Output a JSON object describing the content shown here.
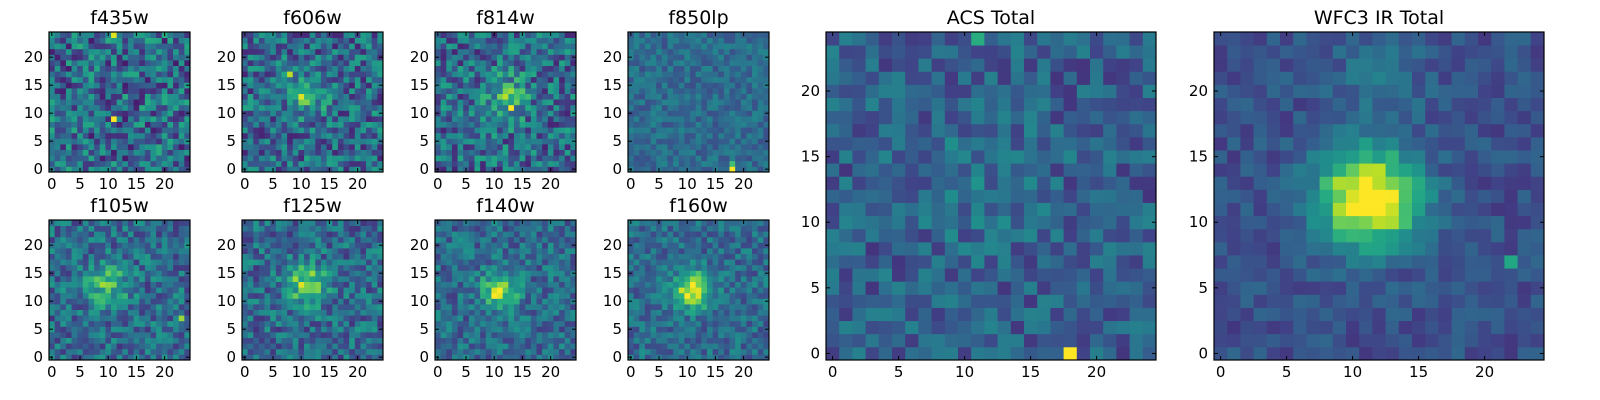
{
  "chart_data": {
    "type": "heatmap",
    "colormap": "viridis",
    "pixel_grid": [
      25,
      25
    ],
    "grid": false,
    "panels": [
      {
        "title": "f435w",
        "xticks": [
          "0",
          "5",
          "10",
          "15",
          "20"
        ],
        "yticks": [
          "0",
          "5",
          "10",
          "15",
          "20"
        ],
        "xlim": [
          -0.5,
          24.5
        ],
        "ylim": [
          -0.5,
          24.5
        ],
        "noise": 0.55,
        "blobs": [],
        "hot_pixels": [
          {
            "x": 11,
            "y": 9,
            "v": 1.0
          },
          {
            "x": 11,
            "y": 24,
            "v": 0.95
          }
        ]
      },
      {
        "title": "f606w",
        "xticks": [
          "0",
          "5",
          "10",
          "15",
          "20"
        ],
        "yticks": [
          "0",
          "5",
          "10",
          "15",
          "20"
        ],
        "xlim": [
          -0.5,
          24.5
        ],
        "ylim": [
          -0.5,
          24.5
        ],
        "noise": 0.5,
        "blobs": [
          {
            "x": 11,
            "y": 13,
            "sigma": 2.5,
            "amp": 0.25
          }
        ],
        "hot_pixels": [
          {
            "x": 10,
            "y": 13,
            "v": 0.95
          },
          {
            "x": 8,
            "y": 17,
            "v": 0.9
          }
        ]
      },
      {
        "title": "f814w",
        "xticks": [
          "0",
          "5",
          "10",
          "15",
          "20"
        ],
        "yticks": [
          "0",
          "5",
          "10",
          "15",
          "20"
        ],
        "xlim": [
          -0.5,
          24.5
        ],
        "ylim": [
          -0.5,
          24.5
        ],
        "noise": 0.5,
        "blobs": [
          {
            "x": 12,
            "y": 13,
            "sigma": 2.8,
            "amp": 0.3
          }
        ],
        "hot_pixels": [
          {
            "x": 13,
            "y": 11,
            "v": 1.0
          }
        ]
      },
      {
        "title": "f850lp",
        "xticks": [
          "0",
          "5",
          "10",
          "15",
          "20"
        ],
        "yticks": [
          "0",
          "5",
          "10",
          "15",
          "20"
        ],
        "xlim": [
          -0.5,
          24.5
        ],
        "ylim": [
          -0.5,
          24.5
        ],
        "noise": 0.22,
        "blobs": [],
        "hot_pixels": [
          {
            "x": 18,
            "y": 0,
            "v": 1.0
          },
          {
            "x": 18,
            "y": 1,
            "v": 0.7
          }
        ]
      },
      {
        "title": "ACS Total",
        "xticks": [
          "0",
          "5",
          "10",
          "15",
          "20"
        ],
        "yticks": [
          "0",
          "5",
          "10",
          "15",
          "20"
        ],
        "xlim": [
          -0.5,
          24.5
        ],
        "ylim": [
          -0.5,
          24.5
        ],
        "noise": 0.3,
        "base": 0.3,
        "blobs": [
          {
            "x": 11,
            "y": 13,
            "sigma": 3.5,
            "amp": 0.08
          }
        ],
        "hot_pixels": [
          {
            "x": 18,
            "y": 0,
            "v": 1.0
          },
          {
            "x": 11,
            "y": 24,
            "v": 0.62
          }
        ]
      },
      {
        "title": "f105w",
        "xticks": [
          "0",
          "5",
          "10",
          "15",
          "20"
        ],
        "yticks": [
          "0",
          "5",
          "10",
          "15",
          "20"
        ],
        "xlim": [
          -0.5,
          24.5
        ],
        "ylim": [
          -0.5,
          24.5
        ],
        "noise": 0.4,
        "blobs": [
          {
            "x": 10,
            "y": 13,
            "sigma": 2.5,
            "amp": 0.35
          }
        ],
        "hot_pixels": [
          {
            "x": 23,
            "y": 7,
            "v": 0.85
          }
        ]
      },
      {
        "title": "f125w",
        "xticks": [
          "0",
          "5",
          "10",
          "15",
          "20"
        ],
        "yticks": [
          "0",
          "5",
          "10",
          "15",
          "20"
        ],
        "xlim": [
          -0.5,
          24.5
        ],
        "ylim": [
          -0.5,
          24.5
        ],
        "noise": 0.4,
        "blobs": [
          {
            "x": 11,
            "y": 13,
            "sigma": 2.5,
            "amp": 0.45
          }
        ],
        "hot_pixels": []
      },
      {
        "title": "f140w",
        "xticks": [
          "0",
          "5",
          "10",
          "15",
          "20"
        ],
        "yticks": [
          "0",
          "5",
          "10",
          "15",
          "20"
        ],
        "xlim": [
          -0.5,
          24.5
        ],
        "ylim": [
          -0.5,
          24.5
        ],
        "noise": 0.35,
        "blobs": [
          {
            "x": 11,
            "y": 12,
            "sigma": 2.2,
            "amp": 0.5
          }
        ],
        "hot_pixels": [
          {
            "x": 10,
            "y": 11,
            "v": 1.0
          },
          {
            "x": 11,
            "y": 11,
            "v": 0.95
          }
        ]
      },
      {
        "title": "f160w",
        "xticks": [
          "0",
          "5",
          "10",
          "15",
          "20"
        ],
        "yticks": [
          "0",
          "5",
          "10",
          "15",
          "20"
        ],
        "xlim": [
          -0.5,
          24.5
        ],
        "ylim": [
          -0.5,
          24.5
        ],
        "noise": 0.3,
        "blobs": [
          {
            "x": 11,
            "y": 12,
            "sigma": 2.2,
            "amp": 0.65
          }
        ],
        "hot_pixels": [
          {
            "x": 11,
            "y": 13,
            "v": 1.0
          }
        ]
      },
      {
        "title": "WFC3 IR Total",
        "xticks": [
          "0",
          "5",
          "10",
          "15",
          "20"
        ],
        "yticks": [
          "0",
          "5",
          "10",
          "15",
          "20"
        ],
        "xlim": [
          -0.5,
          24.5
        ],
        "ylim": [
          -0.5,
          24.5
        ],
        "noise": 0.18,
        "base": 0.25,
        "blobs": [
          {
            "x": 11,
            "y": 12,
            "sigma": 2.6,
            "amp": 0.8
          },
          {
            "x": 14,
            "y": 11,
            "sigma": 1.6,
            "amp": 0.15
          },
          {
            "x": 12,
            "y": 21,
            "sigma": 2.5,
            "amp": 0.12
          }
        ],
        "hot_pixels": [
          {
            "x": 22,
            "y": 7,
            "v": 0.6
          }
        ]
      }
    ]
  }
}
